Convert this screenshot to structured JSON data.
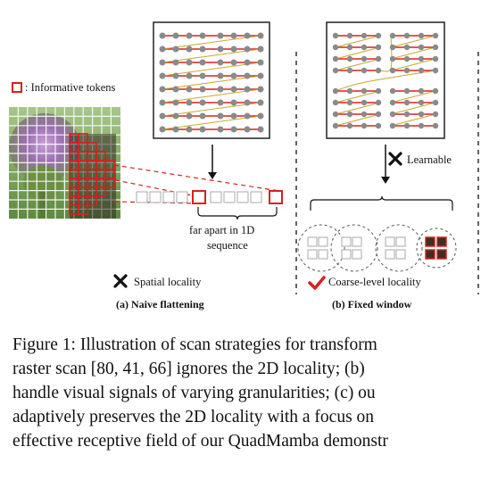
{
  "legend": {
    "informative_tokens": ": Informative tokens"
  },
  "panel_a": {
    "spatial_note": "far apart in 1D",
    "spatial_note2": "sequence",
    "verdict": "Spatial locality",
    "subcaption": "(a) Naive flattening"
  },
  "panel_b": {
    "learnable": "Learnable",
    "verdict": "Coarse-level locality",
    "subcaption": "(b) Fixed window"
  },
  "caption_lines": [
    "Figure 1: Illustration of scan strategies for transform",
    "raster scan [80, 41, 66] ignores the 2D locality; (b)",
    "handle visual signals of varying granularities; (c) ou",
    "adaptively preserves the 2D locality with a focus on",
    "effective receptive field of our QuadMamba demonstr"
  ],
  "colors": {
    "accent": "#d62020",
    "gray": "#999999"
  }
}
